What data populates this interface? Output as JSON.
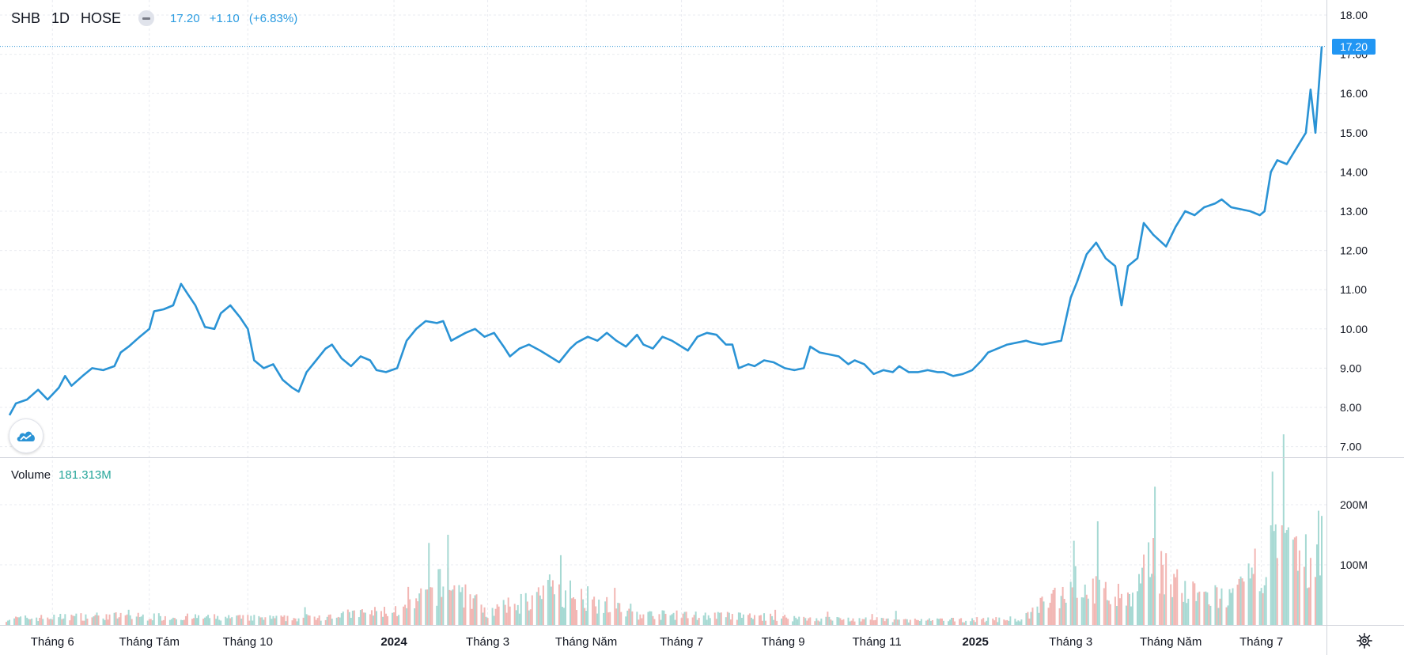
{
  "header": {
    "symbol": "SHB",
    "timeframe": "1D",
    "exchange": "HOSE",
    "last": "17.20",
    "change": "+1.10",
    "change_pct": "(+6.83%)"
  },
  "volume_legend": {
    "name": "Volume",
    "value": "181.313M"
  },
  "last_price_label": "17.20",
  "colors": {
    "line": "#2a93d5",
    "vol_up": "#a6d9d3",
    "vol_down": "#f2b6b3",
    "grid": "#e9ebf0",
    "price_tag": "#2196f3",
    "change_text": "#2a9be0",
    "volume_value": "#26a69a"
  },
  "icons": {
    "logo": "tradingview-cloud-icon",
    "settings": "gear-icon",
    "hide": "minus-icon"
  },
  "chart_data": {
    "type": "line",
    "title": "",
    "xlabel": "",
    "ylabel": "",
    "ylim": [
      7.0,
      18.0
    ],
    "y_ticks": [
      "18.00",
      "17.00",
      "16.00",
      "15.00",
      "14.00",
      "13.00",
      "12.00",
      "11.00",
      "10.00",
      "9.00",
      "8.00",
      "7.00"
    ],
    "x_ticks": [
      {
        "label": "Tháng 6",
        "date": "2023-06-01",
        "bold": false
      },
      {
        "label": "Tháng Tám",
        "date": "2023-08-01",
        "bold": false
      },
      {
        "label": "Tháng 10",
        "date": "2023-10-02",
        "bold": false
      },
      {
        "label": "2024",
        "date": "2024-01-02",
        "bold": true
      },
      {
        "label": "Tháng 3",
        "date": "2024-03-01",
        "bold": false
      },
      {
        "label": "Tháng Năm",
        "date": "2024-05-02",
        "bold": false
      },
      {
        "label": "Tháng 7",
        "date": "2024-07-01",
        "bold": false
      },
      {
        "label": "Tháng 9",
        "date": "2024-09-03",
        "bold": false
      },
      {
        "label": "Tháng 11",
        "date": "2024-11-01",
        "bold": false
      },
      {
        "label": "2025",
        "date": "2025-01-02",
        "bold": true
      },
      {
        "label": "Tháng 3",
        "date": "2025-03-03",
        "bold": false
      },
      {
        "label": "Tháng Năm",
        "date": "2025-05-05",
        "bold": false
      },
      {
        "label": "Tháng 7",
        "date": "2025-07-01",
        "bold": false
      }
    ],
    "grid": true,
    "series": [
      {
        "points": [
          [
            "2023-05-05",
            7.8
          ],
          [
            "2023-05-09",
            8.1
          ],
          [
            "2023-05-16",
            8.2
          ],
          [
            "2023-05-23",
            8.45
          ],
          [
            "2023-05-29",
            8.2
          ],
          [
            "2023-06-05",
            8.5
          ],
          [
            "2023-06-09",
            8.8
          ],
          [
            "2023-06-13",
            8.55
          ],
          [
            "2023-06-20",
            8.8
          ],
          [
            "2023-06-26",
            9.0
          ],
          [
            "2023-07-03",
            8.95
          ],
          [
            "2023-07-10",
            9.05
          ],
          [
            "2023-07-14",
            9.4
          ],
          [
            "2023-07-19",
            9.55
          ],
          [
            "2023-07-26",
            9.8
          ],
          [
            "2023-08-01",
            10.0
          ],
          [
            "2023-08-04",
            10.45
          ],
          [
            "2023-08-10",
            10.5
          ],
          [
            "2023-08-16",
            10.6
          ],
          [
            "2023-08-21",
            11.15
          ],
          [
            "2023-08-25",
            10.9
          ],
          [
            "2023-08-30",
            10.6
          ],
          [
            "2023-09-05",
            10.05
          ],
          [
            "2023-09-11",
            10.0
          ],
          [
            "2023-09-15",
            10.4
          ],
          [
            "2023-09-21",
            10.6
          ],
          [
            "2023-09-27",
            10.3
          ],
          [
            "2023-10-02",
            10.0
          ],
          [
            "2023-10-06",
            9.2
          ],
          [
            "2023-10-12",
            9.0
          ],
          [
            "2023-10-18",
            9.1
          ],
          [
            "2023-10-24",
            8.7
          ],
          [
            "2023-10-30",
            8.5
          ],
          [
            "2023-11-03",
            8.4
          ],
          [
            "2023-11-08",
            8.9
          ],
          [
            "2023-11-14",
            9.2
          ],
          [
            "2023-11-20",
            9.5
          ],
          [
            "2023-11-24",
            9.6
          ],
          [
            "2023-11-30",
            9.25
          ],
          [
            "2023-12-06",
            9.05
          ],
          [
            "2023-12-12",
            9.3
          ],
          [
            "2023-12-18",
            9.2
          ],
          [
            "2023-12-22",
            8.95
          ],
          [
            "2023-12-28",
            8.9
          ],
          [
            "2024-01-04",
            9.0
          ],
          [
            "2024-01-10",
            9.7
          ],
          [
            "2024-01-16",
            10.0
          ],
          [
            "2024-01-22",
            10.2
          ],
          [
            "2024-01-29",
            10.15
          ],
          [
            "2024-02-02",
            10.2
          ],
          [
            "2024-02-07",
            9.7
          ],
          [
            "2024-02-16",
            9.9
          ],
          [
            "2024-02-22",
            10.0
          ],
          [
            "2024-02-28",
            9.8
          ],
          [
            "2024-03-05",
            9.9
          ],
          [
            "2024-03-11",
            9.55
          ],
          [
            "2024-03-15",
            9.3
          ],
          [
            "2024-03-21",
            9.5
          ],
          [
            "2024-03-27",
            9.6
          ],
          [
            "2024-04-03",
            9.45
          ],
          [
            "2024-04-09",
            9.3
          ],
          [
            "2024-04-15",
            9.15
          ],
          [
            "2024-04-22",
            9.5
          ],
          [
            "2024-04-26",
            9.65
          ],
          [
            "2024-05-03",
            9.8
          ],
          [
            "2024-05-09",
            9.7
          ],
          [
            "2024-05-15",
            9.9
          ],
          [
            "2024-05-21",
            9.7
          ],
          [
            "2024-05-27",
            9.55
          ],
          [
            "2024-06-03",
            9.85
          ],
          [
            "2024-06-07",
            9.6
          ],
          [
            "2024-06-13",
            9.5
          ],
          [
            "2024-06-19",
            9.8
          ],
          [
            "2024-06-25",
            9.7
          ],
          [
            "2024-07-01",
            9.55
          ],
          [
            "2024-07-05",
            9.45
          ],
          [
            "2024-07-11",
            9.8
          ],
          [
            "2024-07-17",
            9.9
          ],
          [
            "2024-07-23",
            9.85
          ],
          [
            "2024-07-29",
            9.6
          ],
          [
            "2024-08-02",
            9.6
          ],
          [
            "2024-08-06",
            9.0
          ],
          [
            "2024-08-12",
            9.1
          ],
          [
            "2024-08-16",
            9.05
          ],
          [
            "2024-08-22",
            9.2
          ],
          [
            "2024-08-28",
            9.15
          ],
          [
            "2024-09-04",
            9.0
          ],
          [
            "2024-09-10",
            8.95
          ],
          [
            "2024-09-16",
            9.0
          ],
          [
            "2024-09-20",
            9.55
          ],
          [
            "2024-09-26",
            9.4
          ],
          [
            "2024-10-02",
            9.35
          ],
          [
            "2024-10-08",
            9.3
          ],
          [
            "2024-10-14",
            9.1
          ],
          [
            "2024-10-18",
            9.2
          ],
          [
            "2024-10-24",
            9.1
          ],
          [
            "2024-10-30",
            8.85
          ],
          [
            "2024-11-05",
            8.95
          ],
          [
            "2024-11-11",
            8.9
          ],
          [
            "2024-11-15",
            9.05
          ],
          [
            "2024-11-21",
            8.9
          ],
          [
            "2024-11-27",
            8.9
          ],
          [
            "2024-12-03",
            8.95
          ],
          [
            "2024-12-09",
            8.9
          ],
          [
            "2024-12-13",
            8.9
          ],
          [
            "2024-12-19",
            8.8
          ],
          [
            "2024-12-25",
            8.85
          ],
          [
            "2024-12-31",
            8.95
          ],
          [
            "2025-01-06",
            9.2
          ],
          [
            "2025-01-10",
            9.4
          ],
          [
            "2025-01-16",
            9.5
          ],
          [
            "2025-01-22",
            9.6
          ],
          [
            "2025-02-03",
            9.7
          ],
          [
            "2025-02-07",
            9.65
          ],
          [
            "2025-02-13",
            9.6
          ],
          [
            "2025-02-19",
            9.65
          ],
          [
            "2025-02-25",
            9.7
          ],
          [
            "2025-03-03",
            10.8
          ],
          [
            "2025-03-07",
            11.2
          ],
          [
            "2025-03-13",
            11.9
          ],
          [
            "2025-03-19",
            12.2
          ],
          [
            "2025-03-25",
            11.8
          ],
          [
            "2025-03-31",
            11.6
          ],
          [
            "2025-04-04",
            10.6
          ],
          [
            "2025-04-08",
            11.6
          ],
          [
            "2025-04-14",
            11.8
          ],
          [
            "2025-04-18",
            12.7
          ],
          [
            "2025-04-24",
            12.4
          ],
          [
            "2025-05-02",
            12.1
          ],
          [
            "2025-05-08",
            12.6
          ],
          [
            "2025-05-14",
            13.0
          ],
          [
            "2025-05-20",
            12.9
          ],
          [
            "2025-05-26",
            13.1
          ],
          [
            "2025-06-02",
            13.2
          ],
          [
            "2025-06-06",
            13.3
          ],
          [
            "2025-06-12",
            13.1
          ],
          [
            "2025-06-18",
            13.05
          ],
          [
            "2025-06-24",
            13.0
          ],
          [
            "2025-06-30",
            12.9
          ],
          [
            "2025-07-03",
            13.0
          ],
          [
            "2025-07-07",
            14.0
          ],
          [
            "2025-07-11",
            14.3
          ],
          [
            "2025-07-17",
            14.2
          ],
          [
            "2025-07-23",
            14.6
          ],
          [
            "2025-07-29",
            15.0
          ],
          [
            "2025-08-01",
            16.1
          ],
          [
            "2025-08-04",
            15.0
          ],
          [
            "2025-08-06",
            16.1
          ],
          [
            "2025-08-08",
            17.2
          ]
        ]
      }
    ],
    "volume": {
      "y_ticks": [
        "200M",
        "100M"
      ],
      "approx_daily_M": [
        [
          "2023-05-01",
          20
        ],
        [
          "2023-07-01",
          30
        ],
        [
          "2023-09-01",
          25
        ],
        [
          "2023-11-01",
          22
        ],
        [
          "2024-01-10",
          50
        ],
        [
          "2024-02-05",
          150
        ],
        [
          "2024-03-01",
          40
        ],
        [
          "2024-04-16",
          116
        ],
        [
          "2024-06-01",
          35
        ],
        [
          "2024-08-01",
          30
        ],
        [
          "2024-10-01",
          20
        ],
        [
          "2024-12-01",
          15
        ],
        [
          "2025-02-01",
          20
        ],
        [
          "2025-03-05",
          140
        ],
        [
          "2025-04-10",
          80
        ],
        [
          "2025-04-25",
          230
        ],
        [
          "2025-05-15",
          100
        ],
        [
          "2025-06-15",
          90
        ],
        [
          "2025-07-08",
          255
        ],
        [
          "2025-08-06",
          190
        ],
        [
          "2025-08-08",
          181.313
        ]
      ]
    }
  }
}
